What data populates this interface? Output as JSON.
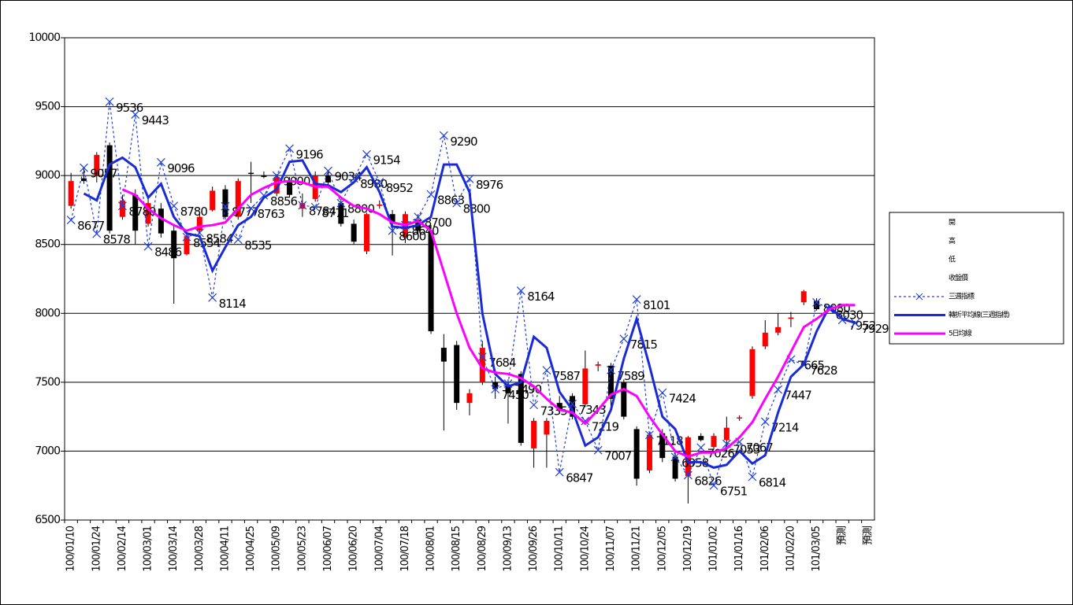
{
  "chart_data": {
    "type": "candlestick",
    "categories": [
      "100/01/10",
      null,
      "100/01/24",
      null,
      "100/02/14",
      null,
      "100/03/01",
      null,
      "100/03/14",
      null,
      "100/03/28",
      null,
      "100/04/11",
      null,
      "100/04/25",
      null,
      "100/05/09",
      null,
      "100/05/23",
      null,
      "100/06/07",
      null,
      "100/06/20",
      null,
      "100/07/04",
      null,
      "100/07/18",
      null,
      "100/08/01",
      null,
      "100/08/15",
      null,
      "100/08/29",
      null,
      "100/09/13",
      null,
      "100/09/26",
      null,
      "100/10/11",
      null,
      "100/10/24",
      null,
      "100/11/07",
      null,
      "100/11/21",
      null,
      "100/12/05",
      null,
      "100/12/19",
      null,
      "101/01/02",
      null,
      "101/01/16",
      null,
      "101/02/06",
      null,
      "101/02/20",
      null,
      "101/03/05",
      null,
      "預測",
      null,
      "預測"
    ],
    "ylim": [
      6500,
      10000
    ],
    "yticks": [
      6500,
      7000,
      7500,
      8000,
      8500,
      9000,
      9500,
      10000
    ],
    "grid": true,
    "up_color": "#ff0000",
    "down_color": "#000000",
    "series": [
      {
        "name": "開",
        "role": "open",
        "values": [
          8780,
          8980,
          9000,
          9220,
          8700,
          8860,
          8650,
          8760,
          8600,
          8430,
          8600,
          8750,
          8900,
          8700,
          9020,
          9000,
          8870,
          8960,
          8760,
          8830,
          9000,
          8800,
          8650,
          8450,
          8780,
          8720,
          8550,
          8680,
          8600,
          7750,
          7770,
          7350,
          7500,
          7500,
          7480,
          7560,
          7020,
          7120,
          7350,
          7400,
          7340,
          7620,
          7620,
          7500,
          7160,
          6860,
          7130,
          6960,
          6820,
          7110,
          7030,
          7080,
          7240,
          7400,
          7760,
          7860,
          7960,
          8080,
          8090,
          null,
          null,
          null,
          null
        ]
      },
      {
        "name": "高",
        "role": "high",
        "values": [
          9020,
          9050,
          9170,
          9240,
          8860,
          8900,
          8830,
          8800,
          8640,
          8600,
          8720,
          8920,
          8930,
          8980,
          9100,
          9030,
          9010,
          8990,
          8870,
          9030,
          9040,
          8830,
          8680,
          8730,
          8820,
          8750,
          8740,
          8720,
          8640,
          7850,
          7800,
          7450,
          7800,
          7540,
          7520,
          7580,
          7240,
          7240,
          7400,
          7420,
          7730,
          7650,
          7640,
          7520,
          7180,
          7140,
          7160,
          6990,
          7110,
          7130,
          7130,
          7250,
          7260,
          7760,
          7950,
          8000,
          8010,
          8170,
          8110,
          null,
          null,
          null,
          null
        ]
      },
      {
        "name": "低",
        "role": "low",
        "values": [
          8760,
          8940,
          8950,
          8580,
          8680,
          8500,
          8630,
          8550,
          8070,
          8420,
          8580,
          8740,
          8680,
          8680,
          8800,
          8980,
          8850,
          8840,
          8700,
          8810,
          8930,
          8630,
          8500,
          8430,
          8760,
          8420,
          8510,
          8580,
          7850,
          7150,
          7300,
          7260,
          7480,
          7380,
          7200,
          7040,
          6880,
          6880,
          7280,
          7230,
          7320,
          7580,
          7300,
          7230,
          6750,
          6840,
          6920,
          6780,
          6620,
          7070,
          7010,
          7000,
          7220,
          7380,
          7740,
          7840,
          7900,
          8060,
          8020,
          null,
          null,
          null,
          null
        ]
      },
      {
        "name": "收盤價",
        "role": "close",
        "values": [
          8960,
          8960,
          9150,
          8600,
          8820,
          8600,
          8800,
          8580,
          8400,
          8560,
          8700,
          8890,
          8700,
          8960,
          9015,
          8990,
          8990,
          8860,
          8800,
          9000,
          8950,
          8650,
          8520,
          8720,
          8790,
          8650,
          8720,
          8600,
          7870,
          7650,
          7350,
          7420,
          7750,
          7450,
          7420,
          7060,
          7220,
          7220,
          7300,
          7250,
          7600,
          7630,
          7380,
          7250,
          6800,
          7120,
          6950,
          6800,
          7100,
          7080,
          7110,
          7170,
          7245,
          7740,
          7860,
          7900,
          7970,
          8160,
          8030,
          null,
          null,
          null,
          null
        ]
      },
      {
        "name": "三週指標",
        "role": "line",
        "color": "#1f3fe0",
        "dashed": true,
        "marker": "x",
        "labeled": true,
        "values": [
          8677,
          9057,
          8578,
          9536,
          8780,
          9443,
          8486,
          9096,
          8780,
          8554,
          8584,
          8114,
          8777,
          8535,
          8763,
          8856,
          9000,
          9196,
          8784,
          8771,
          9034,
          8800,
          8980,
          9154,
          8952,
          8600,
          8640,
          8700,
          8863,
          9290,
          8800,
          8976,
          7684,
          7450,
          7490,
          8164,
          7335,
          7587,
          6847,
          7343,
          7219,
          7007,
          7589,
          7815,
          8101,
          7118,
          7424,
          6958,
          6826,
          7026,
          6751,
          7053,
          7067,
          6814,
          7214,
          7447,
          7665,
          7628,
          8080,
          8030,
          7952,
          7929,
          null
        ]
      },
      {
        "name": "轉折平均線(三週指標)",
        "role": "line",
        "color": "#1a2bd6",
        "width": 3,
        "values": [
          null,
          8870,
          8820,
          9080,
          9130,
          9060,
          8840,
          8940,
          8700,
          8580,
          8560,
          8310,
          8480,
          8640,
          8700,
          8840,
          8900,
          9100,
          9110,
          8940,
          8930,
          8880,
          8950,
          9060,
          8880,
          8630,
          8620,
          8640,
          8700,
          9080,
          9080,
          8880,
          8000,
          7560,
          7470,
          7500,
          7830,
          7750,
          7430,
          7300,
          7040,
          7100,
          7300,
          7670,
          7960,
          7620,
          7250,
          7160,
          6920,
          6920,
          6880,
          6900,
          7000,
          6910,
          6970,
          7280,
          7540,
          7630,
          7870,
          8050,
          7960,
          7930,
          null
        ]
      },
      {
        "name": "5日均線",
        "role": "line",
        "color": "#ff00ff",
        "width": 3,
        "values": [
          null,
          null,
          null,
          null,
          8900,
          8860,
          8760,
          8690,
          8640,
          8600,
          8630,
          8640,
          8660,
          8760,
          8860,
          8910,
          8950,
          8960,
          8950,
          8920,
          8920,
          8840,
          8780,
          8760,
          8720,
          8660,
          8640,
          8670,
          8600,
          8300,
          8000,
          7750,
          7600,
          7570,
          7560,
          7530,
          7470,
          7380,
          7300,
          7280,
          7200,
          7300,
          7410,
          7450,
          7400,
          7250,
          7120,
          7000,
          6960,
          6990,
          6990,
          7020,
          7100,
          7210,
          7380,
          7540,
          7720,
          7900,
          7960,
          8030,
          8060,
          8060,
          null
        ]
      }
    ]
  }
}
